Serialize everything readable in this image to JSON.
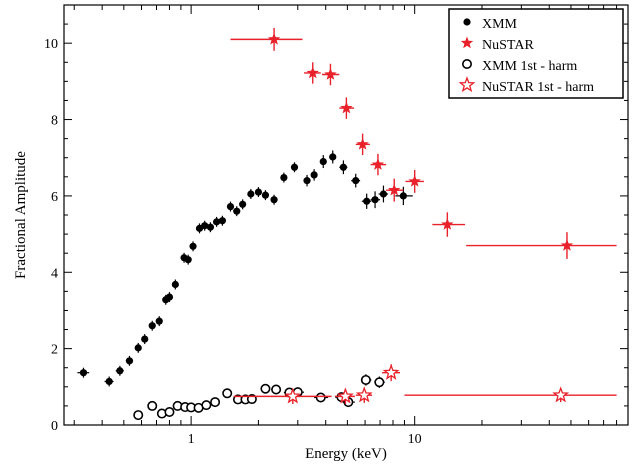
{
  "chart_data": {
    "type": "scatter",
    "title": "",
    "xlabel": "Energy (keV)",
    "ylabel": "Fractional Amplitude",
    "xscale": "log",
    "xlim": [
      0.27,
      90
    ],
    "ylim": [
      0,
      11
    ],
    "x_ticks": [
      {
        "value": 1,
        "label": "1"
      },
      {
        "value": 10,
        "label": "10"
      }
    ],
    "y_ticks": [
      {
        "value": 0,
        "label": "0"
      },
      {
        "value": 2,
        "label": "2"
      },
      {
        "value": 4,
        "label": "4"
      },
      {
        "value": 6,
        "label": "6"
      },
      {
        "value": 8,
        "label": "8"
      },
      {
        "value": 10,
        "label": "10"
      }
    ],
    "grid": false,
    "legend": "top-right",
    "series": [
      {
        "name": "XMM",
        "marker": "filled-circle",
        "color": "#000000",
        "points": [
          {
            "x": 0.33,
            "y": 1.37,
            "xerr": [
              0.02,
              0.02
            ],
            "yerr": 0.13
          },
          {
            "x": 0.43,
            "y": 1.14,
            "xerr": [
              0.02,
              0.02
            ],
            "yerr": 0.13
          },
          {
            "x": 0.48,
            "y": 1.42,
            "xerr": [
              0.02,
              0.02
            ],
            "yerr": 0.13
          },
          {
            "x": 0.53,
            "y": 1.68,
            "xerr": [
              0.02,
              0.02
            ],
            "yerr": 0.13
          },
          {
            "x": 0.58,
            "y": 2.02,
            "xerr": [
              0.02,
              0.02
            ],
            "yerr": 0.13
          },
          {
            "x": 0.62,
            "y": 2.25,
            "xerr": [
              0.02,
              0.02
            ],
            "yerr": 0.13
          },
          {
            "x": 0.67,
            "y": 2.6,
            "xerr": [
              0.02,
              0.02
            ],
            "yerr": 0.13
          },
          {
            "x": 0.72,
            "y": 2.72,
            "xerr": [
              0.02,
              0.02
            ],
            "yerr": 0.13
          },
          {
            "x": 0.77,
            "y": 3.28,
            "xerr": [
              0.02,
              0.02
            ],
            "yerr": 0.13
          },
          {
            "x": 0.8,
            "y": 3.35,
            "xerr": [
              0.02,
              0.02
            ],
            "yerr": 0.13
          },
          {
            "x": 0.85,
            "y": 3.68,
            "xerr": [
              0.02,
              0.02
            ],
            "yerr": 0.13
          },
          {
            "x": 0.93,
            "y": 4.38,
            "xerr": [
              0.02,
              0.03
            ],
            "yerr": 0.13
          },
          {
            "x": 0.97,
            "y": 4.33,
            "xerr": [
              0.02,
              0.03
            ],
            "yerr": 0.13
          },
          {
            "x": 1.02,
            "y": 4.68,
            "xerr": [
              0.02,
              0.03
            ],
            "yerr": 0.13
          },
          {
            "x": 1.09,
            "y": 5.15,
            "xerr": [
              0.03,
              0.03
            ],
            "yerr": 0.13
          },
          {
            "x": 1.15,
            "y": 5.22,
            "xerr": [
              0.03,
              0.03
            ],
            "yerr": 0.13
          },
          {
            "x": 1.22,
            "y": 5.18,
            "xerr": [
              0.03,
              0.03
            ],
            "yerr": 0.13
          },
          {
            "x": 1.3,
            "y": 5.32,
            "xerr": [
              0.03,
              0.03
            ],
            "yerr": 0.13
          },
          {
            "x": 1.38,
            "y": 5.35,
            "xerr": [
              0.03,
              0.04
            ],
            "yerr": 0.13
          },
          {
            "x": 1.5,
            "y": 5.72,
            "xerr": [
              0.04,
              0.04
            ],
            "yerr": 0.13
          },
          {
            "x": 1.6,
            "y": 5.6,
            "xerr": [
              0.04,
              0.04
            ],
            "yerr": 0.13
          },
          {
            "x": 1.7,
            "y": 5.78,
            "xerr": [
              0.04,
              0.05
            ],
            "yerr": 0.13
          },
          {
            "x": 1.85,
            "y": 6.05,
            "xerr": [
              0.05,
              0.05
            ],
            "yerr": 0.13
          },
          {
            "x": 2.0,
            "y": 6.1,
            "xerr": [
              0.05,
              0.05
            ],
            "yerr": 0.13
          },
          {
            "x": 2.15,
            "y": 6.02,
            "xerr": [
              0.06,
              0.06
            ],
            "yerr": 0.13
          },
          {
            "x": 2.35,
            "y": 5.9,
            "xerr": [
              0.06,
              0.07
            ],
            "yerr": 0.13
          },
          {
            "x": 2.6,
            "y": 6.48,
            "xerr": [
              0.08,
              0.08
            ],
            "yerr": 0.13
          },
          {
            "x": 2.9,
            "y": 6.75,
            "xerr": [
              0.09,
              0.09
            ],
            "yerr": 0.13
          },
          {
            "x": 3.3,
            "y": 6.4,
            "xerr": [
              0.1,
              0.1
            ],
            "yerr": 0.15
          },
          {
            "x": 3.55,
            "y": 6.55,
            "xerr": [
              0.1,
              0.12
            ],
            "yerr": 0.15
          },
          {
            "x": 3.9,
            "y": 6.9,
            "xerr": [
              0.12,
              0.14
            ],
            "yerr": 0.17
          },
          {
            "x": 4.3,
            "y": 7.02,
            "xerr": [
              0.15,
              0.15
            ],
            "yerr": 0.17
          },
          {
            "x": 4.8,
            "y": 6.75,
            "xerr": [
              0.2,
              0.2
            ],
            "yerr": 0.18
          },
          {
            "x": 5.45,
            "y": 6.4,
            "xerr": [
              0.25,
              0.25
            ],
            "yerr": 0.18
          },
          {
            "x": 6.1,
            "y": 5.86,
            "xerr": [
              0.3,
              0.3
            ],
            "yerr": 0.2
          },
          {
            "x": 6.65,
            "y": 5.9,
            "xerr": [
              0.3,
              0.35
            ],
            "yerr": 0.22
          },
          {
            "x": 7.25,
            "y": 6.05,
            "xerr": [
              0.35,
              0.35
            ],
            "yerr": 0.22
          },
          {
            "x": 8.9,
            "y": 6.0,
            "xerr": [
              0.7,
              0.9
            ],
            "yerr": 0.24
          }
        ]
      },
      {
        "name": "NuSTAR",
        "marker": "filled-star",
        "color": "#e8212a",
        "points": [
          {
            "x": 2.35,
            "y": 10.1,
            "xerr": [
              0.85,
              0.8
            ],
            "yerr": 0.3
          },
          {
            "x": 3.5,
            "y": 9.22,
            "xerr": [
              0.3,
              0.3
            ],
            "yerr": 0.28
          },
          {
            "x": 4.2,
            "y": 9.18,
            "xerr": [
              0.35,
              0.4
            ],
            "yerr": 0.28
          },
          {
            "x": 4.95,
            "y": 8.3,
            "xerr": [
              0.35,
              0.4
            ],
            "yerr": 0.28
          },
          {
            "x": 5.85,
            "y": 7.35,
            "xerr": [
              0.4,
              0.45
            ],
            "yerr": 0.28
          },
          {
            "x": 6.85,
            "y": 6.82,
            "xerr": [
              0.5,
              0.6
            ],
            "yerr": 0.28
          },
          {
            "x": 8.1,
            "y": 6.15,
            "xerr": [
              0.65,
              0.8
            ],
            "yerr": 0.3
          },
          {
            "x": 10.0,
            "y": 6.38,
            "xerr": [
              0.9,
              1.0
            ],
            "yerr": 0.3
          },
          {
            "x": 14.0,
            "y": 5.25,
            "xerr": [
              2.0,
              2.8
            ],
            "yerr": 0.32
          },
          {
            "x": 48.0,
            "y": 4.7,
            "xerr": [
              31.0,
              32.0
            ],
            "yerr": 0.35
          }
        ]
      },
      {
        "name": "XMM 1st - harm",
        "marker": "open-circle",
        "color": "#000000",
        "points": [
          {
            "x": 0.58,
            "y": 0.26,
            "xerr": [
              0.02,
              0.02
            ],
            "yerr": 0.08
          },
          {
            "x": 0.67,
            "y": 0.5,
            "xerr": [
              0.02,
              0.02
            ],
            "yerr": 0.08
          },
          {
            "x": 0.74,
            "y": 0.3,
            "xerr": [
              0.02,
              0.02
            ],
            "yerr": 0.08
          },
          {
            "x": 0.8,
            "y": 0.34,
            "xerr": [
              0.02,
              0.02
            ],
            "yerr": 0.08
          },
          {
            "x": 0.87,
            "y": 0.5,
            "xerr": [
              0.02,
              0.02
            ],
            "yerr": 0.08
          },
          {
            "x": 0.94,
            "y": 0.47,
            "xerr": [
              0.02,
              0.02
            ],
            "yerr": 0.08
          },
          {
            "x": 1.0,
            "y": 0.46,
            "xerr": [
              0.02,
              0.02
            ],
            "yerr": 0.08
          },
          {
            "x": 1.08,
            "y": 0.45,
            "xerr": [
              0.02,
              0.02
            ],
            "yerr": 0.08
          },
          {
            "x": 1.17,
            "y": 0.52,
            "xerr": [
              0.03,
              0.03
            ],
            "yerr": 0.08
          },
          {
            "x": 1.28,
            "y": 0.6,
            "xerr": [
              0.03,
              0.03
            ],
            "yerr": 0.08
          },
          {
            "x": 1.45,
            "y": 0.83,
            "xerr": [
              0.04,
              0.04
            ],
            "yerr": 0.08
          },
          {
            "x": 1.62,
            "y": 0.67,
            "xerr": [
              0.04,
              0.04
            ],
            "yerr": 0.08
          },
          {
            "x": 1.75,
            "y": 0.67,
            "xerr": [
              0.04,
              0.04
            ],
            "yerr": 0.08
          },
          {
            "x": 1.87,
            "y": 0.68,
            "xerr": [
              0.05,
              0.05
            ],
            "yerr": 0.08
          },
          {
            "x": 2.15,
            "y": 0.95,
            "xerr": [
              0.1,
              0.1
            ],
            "yerr": 0.1
          },
          {
            "x": 2.4,
            "y": 0.93,
            "xerr": [
              0.12,
              0.12
            ],
            "yerr": 0.1
          },
          {
            "x": 2.75,
            "y": 0.85,
            "xerr": [
              0.15,
              0.15
            ],
            "yerr": 0.1
          },
          {
            "x": 3.0,
            "y": 0.86,
            "xerr": [
              0.2,
              0.2
            ],
            "yerr": 0.1
          },
          {
            "x": 3.8,
            "y": 0.72,
            "xerr": [
              0.25,
              0.3
            ],
            "yerr": 0.1
          },
          {
            "x": 4.7,
            "y": 0.73,
            "xerr": [
              0.3,
              0.3
            ],
            "yerr": 0.12
          },
          {
            "x": 5.05,
            "y": 0.6,
            "xerr": [
              0.3,
              0.35
            ],
            "yerr": 0.12
          },
          {
            "x": 6.05,
            "y": 1.18,
            "xerr": [
              0.3,
              0.35
            ],
            "yerr": 0.15
          },
          {
            "x": 6.95,
            "y": 1.12,
            "xerr": [
              0.35,
              0.4
            ],
            "yerr": 0.15
          }
        ]
      },
      {
        "name": "NuSTAR 1st - harm",
        "marker": "open-star",
        "color": "#e8212a",
        "points": [
          {
            "x": 2.85,
            "y": 0.75,
            "xerr": [
              1.3,
              1.4
            ],
            "yerr": 0.2
          },
          {
            "x": 4.9,
            "y": 0.75,
            "xerr": [
              0.5,
              0.5
            ],
            "yerr": 0.2
          },
          {
            "x": 5.95,
            "y": 0.78,
            "xerr": [
              0.5,
              0.5
            ],
            "yerr": 0.2
          },
          {
            "x": 7.85,
            "y": 1.37,
            "xerr": [
              0.7,
              0.75
            ],
            "yerr": 0.22
          },
          {
            "x": 45.0,
            "y": 0.78,
            "xerr": [
              36.0,
              35.0
            ],
            "yerr": 0.18
          }
        ]
      }
    ]
  }
}
